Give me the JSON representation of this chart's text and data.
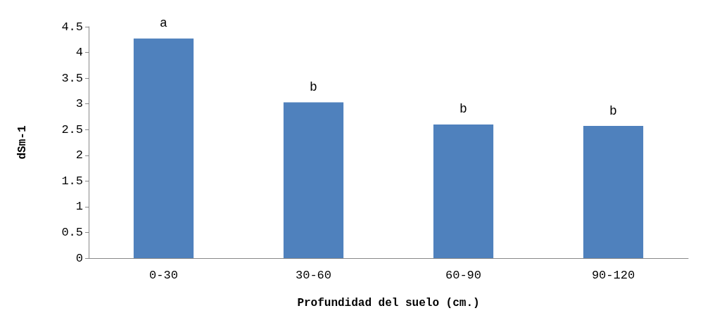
{
  "chart_data": {
    "type": "bar",
    "xlabel": "Profundidad del suelo (cm.)",
    "ylabel": "dSm-1",
    "categories": [
      "0-30",
      "30-60",
      "60-90",
      "90-120"
    ],
    "values": [
      4.27,
      3.03,
      2.6,
      2.57
    ],
    "color": "#4f81bd",
    "ylim": [
      0,
      4.5
    ],
    "yticks": [
      0,
      0.5,
      1,
      1.5,
      2,
      2.5,
      3,
      3.5,
      4,
      4.5
    ],
    "grid": false,
    "annotations": [
      {
        "text": "a",
        "x": "0-30",
        "y": 4.27
      },
      {
        "text": "b",
        "x": "30-60",
        "y": 3.03
      },
      {
        "text": "b",
        "x": "60-90",
        "y": 2.6
      },
      {
        "text": "b",
        "x": "90-120",
        "y": 2.57
      }
    ]
  }
}
